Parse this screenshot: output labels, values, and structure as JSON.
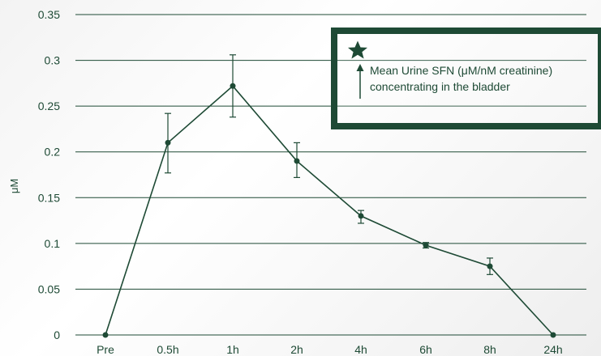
{
  "colors": {
    "primary": "#1e4a35",
    "grid": "#1e4a35",
    "background": "#f4f4f4"
  },
  "chart_data": {
    "type": "line",
    "ylabel": "μM",
    "xlabel": "",
    "ylim": [
      0,
      0.35
    ],
    "yticks": [
      "0",
      "0.05",
      "0.1",
      "0.15",
      "0.2",
      "0.25",
      "0.3",
      "0.35"
    ],
    "grid": true,
    "categories": [
      "Pre",
      "0.5h",
      "1h",
      "2h",
      "4h",
      "6h",
      "8h",
      "24h"
    ],
    "series": [
      {
        "name": "Mean Urine SFN (μM/nM creatinine) concentrating in the bladder",
        "values": [
          0,
          0.21,
          0.272,
          0.19,
          0.13,
          0.098,
          0.075,
          0
        ],
        "error_low": [
          null,
          0.177,
          0.238,
          0.172,
          0.122,
          0.095,
          0.066,
          null
        ],
        "error_high": [
          null,
          0.242,
          0.306,
          0.21,
          0.136,
          0.101,
          0.084,
          null
        ]
      }
    ],
    "legend": {
      "placement": "top-right",
      "icon": "star-icon",
      "lines": [
        "Mean Urine SFN (μM/nM creatinine)",
        "concentrating in the bladder"
      ]
    }
  }
}
